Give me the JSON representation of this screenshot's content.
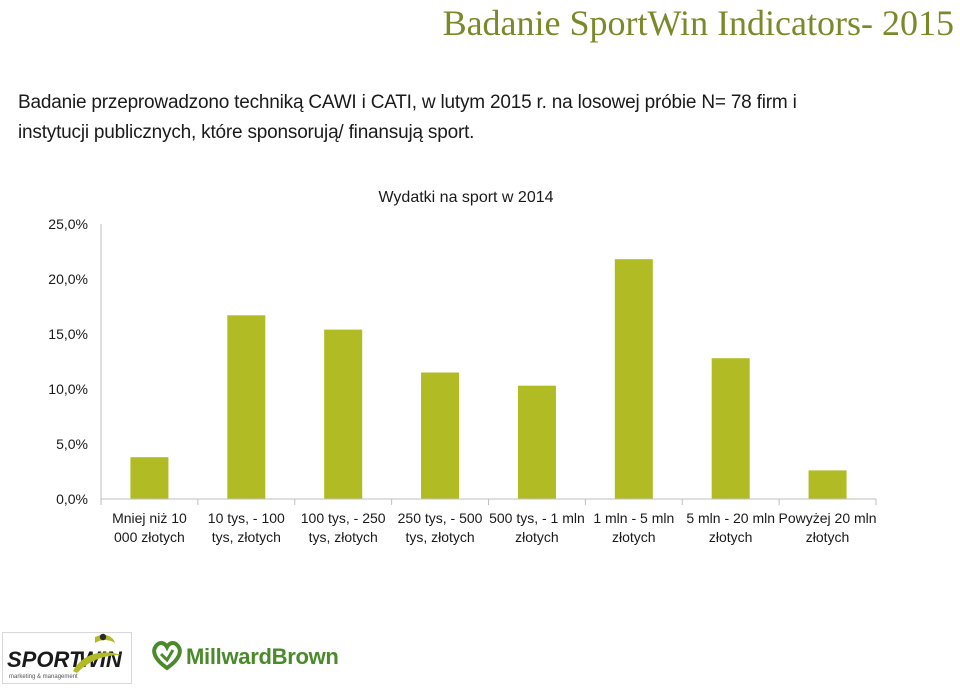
{
  "header": {
    "title": "Badanie SportWin Indicators- 2015",
    "intro_line1": "Badanie przeprowadzono techniką CAWI i CATI, w lutym 2015 r. na losowej próbie N= 78 firm i",
    "intro_line2": "instytucji publicznych, które sponsorują/ finansują sport."
  },
  "colors": {
    "bar": "#b1bb23",
    "title": "#7a8a2a",
    "axis": "#bfbfbf"
  },
  "chart_data": {
    "type": "bar",
    "title": "Wydatki na sport w 2014",
    "categories": [
      [
        "Mniej niż 10",
        "000 złotych"
      ],
      [
        "10 tys, - 100",
        "tys, złotych"
      ],
      [
        "100 tys, - 250",
        "tys, złotych"
      ],
      [
        "250 tys, - 500",
        "tys, złotych"
      ],
      [
        "500 tys, - 1 mln",
        "złotych"
      ],
      [
        "1 mln - 5 mln",
        "złotych"
      ],
      [
        "5 mln - 20 mln",
        "złotych"
      ],
      [
        "Powyżej 20 mln",
        "złotych"
      ]
    ],
    "values": [
      3.8,
      16.7,
      15.4,
      11.5,
      10.3,
      21.8,
      12.8,
      2.6
    ],
    "ylim": [
      0,
      25
    ],
    "yticks": [
      "0,0%",
      "5,0%",
      "10,0%",
      "15,0%",
      "20,0%",
      "25,0%"
    ],
    "ytick_values": [
      0,
      5,
      10,
      15,
      20,
      25
    ],
    "grid": false,
    "xlabel": "",
    "ylabel": ""
  },
  "logos": {
    "sportwin_text": "SPORT",
    "sportwin_win": "WIN",
    "sportwin_tagline": "marketing & management",
    "millward_text": "MillwardBrown"
  }
}
